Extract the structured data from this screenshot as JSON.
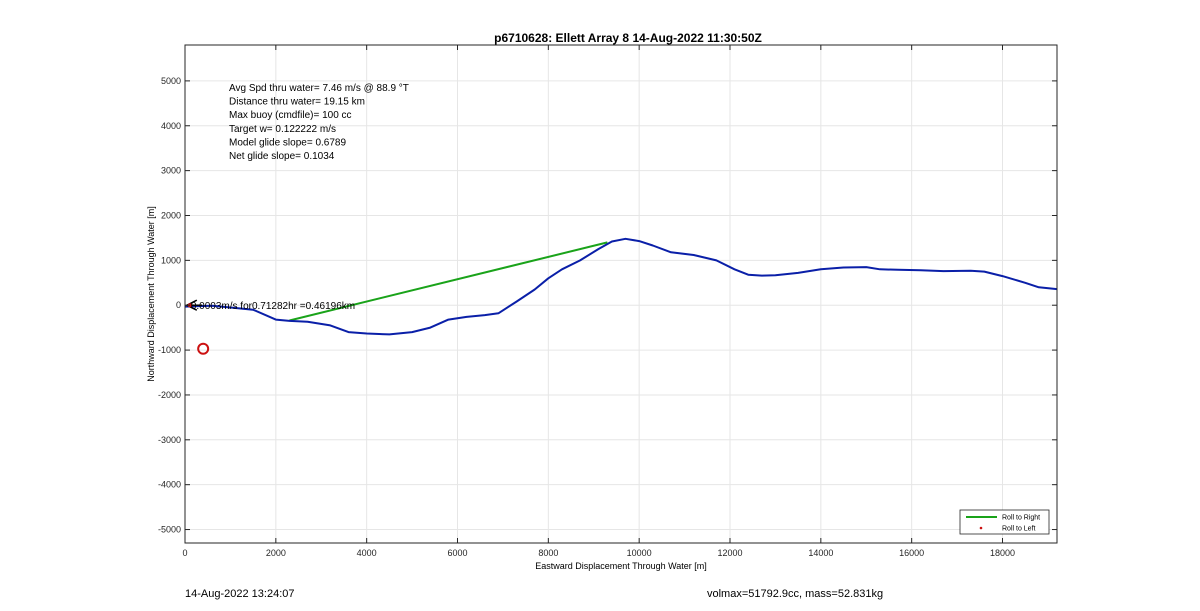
{
  "chart_data": {
    "type": "line",
    "title": "p6710628: Ellett Array 8 14-Aug-2022 11:30:50Z",
    "xlabel": "Eastward Displacement Through Water [m]",
    "ylabel": "Northward Displacement Through Water [m]",
    "xlim": [
      0,
      19200
    ],
    "ylim": [
      -5300,
      5800
    ],
    "xticks": [
      0,
      2000,
      4000,
      6000,
      8000,
      10000,
      12000,
      14000,
      16000,
      18000
    ],
    "yticks": [
      -5000,
      -4000,
      -3000,
      -2000,
      -1000,
      0,
      1000,
      2000,
      3000,
      4000,
      5000
    ],
    "grid": true,
    "legend_position": "bottom-right",
    "colors": {
      "track": "#0a1fa8",
      "roll_right": "#1aa31a",
      "roll_left": "#cc1111",
      "marker": "#cc1111",
      "arrow": "#000000"
    },
    "track": {
      "x": [
        0,
        300,
        600,
        1000,
        1500,
        2000,
        2300,
        2700,
        3200,
        3600,
        4000,
        4500,
        5000,
        5400,
        5800,
        6200,
        6600,
        6900,
        7300,
        7700,
        8000,
        8300,
        8700,
        9100,
        9400,
        9700,
        10000,
        10300,
        10700,
        11200,
        11700,
        12100,
        12400,
        12700,
        13000,
        13500,
        14000,
        14500,
        15000,
        15300,
        15700,
        16200,
        16700,
        17300,
        17600,
        18000,
        18500,
        18800,
        19200
      ],
      "y": [
        -30,
        -20,
        -10,
        -50,
        -100,
        -320,
        -350,
        -370,
        -450,
        -600,
        -630,
        -650,
        -600,
        -500,
        -320,
        -260,
        -220,
        -180,
        80,
        350,
        600,
        800,
        1000,
        1250,
        1420,
        1480,
        1430,
        1330,
        1180,
        1120,
        1000,
        800,
        680,
        660,
        670,
        720,
        800,
        840,
        850,
        800,
        790,
        780,
        760,
        770,
        750,
        650,
        500,
        400,
        360
      ]
    },
    "roll_right_line": {
      "x": [
        2300,
        9300
      ],
      "y": [
        -340,
        1400
      ]
    },
    "marker_point": {
      "x": 400,
      "y": -970
    },
    "arrow": {
      "x_from": 380,
      "y_from": 0,
      "x_to": 40,
      "y_to": 0
    },
    "legend": [
      {
        "label": "Roll to Right",
        "style": "line"
      },
      {
        "label": "Roll to Left",
        "style": "dot"
      }
    ],
    "stats": [
      "Avg Spd thru water=  7.46 m/s @  88.9 °T",
      "Distance thru water= 19.15 km",
      "Max buoy (cmdfile)= 100 cc",
      "Target w= 0.122222 m/s",
      "Model glide slope= 0.6789",
      "Net glide slope= 0.1034"
    ],
    "arrow_label": "0.0003m/s for0.71282hr =0.46196km"
  },
  "footer": {
    "timestamp": "14-Aug-2022 13:24:07",
    "summary": "volmax=51792.9cc, mass=52.831kg"
  }
}
